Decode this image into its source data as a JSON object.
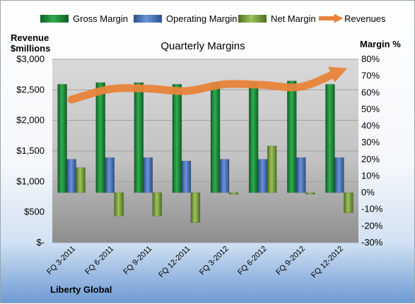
{
  "chart_data": {
    "type": "bar",
    "title": "Quarterly Margins",
    "ylabel_left": [
      "Revenue",
      "$millions"
    ],
    "ylabel_right": "Margin %",
    "footer": "Liberty Global",
    "categories": [
      "FQ 3-2011",
      "FQ 6-2011",
      "FQ 9-2011",
      "FQ 12-2011",
      "FQ 3-2012",
      "FQ 6-2012",
      "FQ 9-2012",
      "FQ 12-2012"
    ],
    "left_axis": {
      "min": 0,
      "max": 3000,
      "step": 500,
      "ticks": [
        "$-",
        "$500",
        "$1,000",
        "$1,500",
        "$2,000",
        "$2,500",
        "$3,000"
      ]
    },
    "right_axis": {
      "min": -30,
      "max": 80,
      "step": 10,
      "ticks": [
        "-30%",
        "-20%",
        "-10%",
        "0%",
        "10%",
        "20%",
        "30%",
        "40%",
        "50%",
        "60%",
        "70%",
        "80%"
      ]
    },
    "series": [
      {
        "name": "Gross Margin",
        "type": "bar",
        "axis": "right",
        "color": "#1f8a3a",
        "values": [
          65,
          66,
          66,
          65,
          66,
          66,
          67,
          65
        ]
      },
      {
        "name": "Operating Margin",
        "type": "bar",
        "axis": "right",
        "color": "#4a72b8",
        "values": [
          20,
          21,
          21,
          19,
          20,
          20,
          21,
          21
        ]
      },
      {
        "name": "Net Margin",
        "type": "bar",
        "axis": "right",
        "color": "#7fa640",
        "values": [
          15,
          -14,
          -14,
          -18,
          -1,
          28,
          -1,
          -12
        ]
      },
      {
        "name": "Revenues",
        "type": "line",
        "axis": "left",
        "color": "#e9843a",
        "values": [
          2340,
          2510,
          2520,
          2480,
          2590,
          2580,
          2550,
          2800
        ]
      }
    ],
    "grid": true,
    "legend_position": "top"
  }
}
